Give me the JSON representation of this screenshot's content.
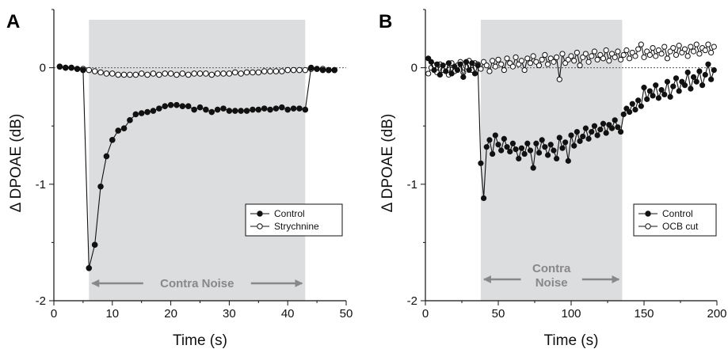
{
  "chart_data": [
    {
      "type": "line",
      "panel": "A",
      "xlabel": "Time (s)",
      "ylabel": "Δ DPOAE (dB)",
      "xlim": [
        0,
        50
      ],
      "ylim": [
        -2,
        0.5
      ],
      "xticks": [
        "0",
        "10",
        "20",
        "30",
        "40",
        "50"
      ],
      "yticks": [
        "0",
        "-1",
        "-2"
      ],
      "shaded_region": {
        "x": [
          6,
          43
        ],
        "label": "Contra Noise"
      },
      "reference_line_y": 0,
      "legend": [
        "Control",
        "Strychnine"
      ],
      "legend_position": "lower-right",
      "series": [
        {
          "name": "Control",
          "marker": "filled",
          "x": [
            1,
            2,
            3,
            4,
            5,
            6,
            7,
            8,
            9,
            10,
            11,
            12,
            13,
            14,
            15,
            16,
            17,
            18,
            19,
            20,
            21,
            22,
            23,
            24,
            25,
            26,
            27,
            28,
            29,
            30,
            31,
            32,
            33,
            34,
            35,
            36,
            37,
            38,
            39,
            40,
            41,
            42,
            43,
            44,
            45,
            46,
            47,
            48
          ],
          "y": [
            0.01,
            0,
            0,
            -0.01,
            -0.02,
            -1.72,
            -1.52,
            -1.02,
            -0.76,
            -0.62,
            -0.54,
            -0.52,
            -0.45,
            -0.4,
            -0.39,
            -0.38,
            -0.37,
            -0.35,
            -0.33,
            -0.32,
            -0.32,
            -0.33,
            -0.33,
            -0.36,
            -0.34,
            -0.36,
            -0.38,
            -0.36,
            -0.35,
            -0.37,
            -0.37,
            -0.37,
            -0.37,
            -0.36,
            -0.36,
            -0.35,
            -0.36,
            -0.35,
            -0.34,
            -0.36,
            -0.35,
            -0.35,
            -0.36,
            0,
            -0.01,
            -0.02,
            -0.02,
            -0.02
          ]
        },
        {
          "name": "Strychnine",
          "marker": "open",
          "x": [
            1,
            2,
            3,
            4,
            5,
            6,
            7,
            8,
            9,
            10,
            11,
            12,
            13,
            14,
            15,
            16,
            17,
            18,
            19,
            20,
            21,
            22,
            23,
            24,
            25,
            26,
            27,
            28,
            29,
            30,
            31,
            32,
            33,
            34,
            35,
            36,
            37,
            38,
            39,
            40,
            41,
            42,
            43,
            44,
            45,
            46,
            47,
            48
          ],
          "y": [
            0.01,
            0,
            0,
            -0.01,
            -0.01,
            -0.02,
            -0.03,
            -0.04,
            -0.05,
            -0.05,
            -0.06,
            -0.06,
            -0.06,
            -0.06,
            -0.05,
            -0.06,
            -0.05,
            -0.06,
            -0.05,
            -0.05,
            -0.06,
            -0.05,
            -0.06,
            -0.05,
            -0.05,
            -0.05,
            -0.06,
            -0.05,
            -0.05,
            -0.05,
            -0.04,
            -0.05,
            -0.04,
            -0.04,
            -0.04,
            -0.03,
            -0.03,
            -0.03,
            -0.03,
            -0.02,
            -0.02,
            -0.02,
            -0.02,
            -0.01,
            -0.01,
            -0.01,
            -0.02,
            -0.02
          ]
        }
      ]
    },
    {
      "type": "line",
      "panel": "B",
      "xlabel": "Time (s)",
      "ylabel": "Δ DPOAE (dB)",
      "xlim": [
        0,
        200
      ],
      "ylim": [
        -2,
        0.5
      ],
      "xticks": [
        "0",
        "50",
        "100",
        "150",
        "200"
      ],
      "yticks": [
        "0",
        "-1",
        "-2"
      ],
      "shaded_region": {
        "x": [
          38,
          135
        ],
        "label": "Contra\nNoise"
      },
      "reference_line_y": 0,
      "legend": [
        "Control",
        "OCB cut"
      ],
      "legend_position": "lower-right",
      "series": [
        {
          "name": "Control",
          "marker": "filled",
          "x": [
            2,
            4,
            6,
            8,
            10,
            12,
            14,
            16,
            18,
            20,
            22,
            24,
            26,
            28,
            30,
            32,
            34,
            36,
            38,
            40,
            42,
            44,
            46,
            48,
            50,
            52,
            54,
            56,
            58,
            60,
            62,
            64,
            66,
            68,
            70,
            72,
            74,
            76,
            78,
            80,
            82,
            84,
            86,
            88,
            90,
            92,
            94,
            96,
            98,
            100,
            102,
            104,
            106,
            108,
            110,
            112,
            114,
            116,
            118,
            120,
            122,
            124,
            126,
            128,
            130,
            132,
            134,
            136,
            138,
            140,
            142,
            144,
            146,
            148,
            150,
            152,
            154,
            156,
            158,
            160,
            162,
            164,
            166,
            168,
            170,
            172,
            174,
            176,
            178,
            180,
            182,
            184,
            186,
            188,
            190,
            192,
            194,
            196,
            198
          ],
          "y": [
            0.08,
            0.05,
            -0.02,
            0.03,
            -0.06,
            0.02,
            -0.03,
            0.04,
            -0.05,
            0.01,
            -0.02,
            0.03,
            -0.08,
            0.05,
            -0.02,
            0.04,
            -0.05,
            0.02,
            -0.82,
            -1.12,
            -0.68,
            -0.62,
            -0.74,
            -0.58,
            -0.66,
            -0.71,
            -0.61,
            -0.68,
            -0.72,
            -0.65,
            -0.7,
            -0.78,
            -0.69,
            -0.74,
            -0.65,
            -0.71,
            -0.86,
            -0.65,
            -0.73,
            -0.62,
            -0.68,
            -0.75,
            -0.66,
            -0.71,
            -0.78,
            -0.6,
            -0.69,
            -0.64,
            -0.8,
            -0.58,
            -0.67,
            -0.55,
            -0.63,
            -0.59,
            -0.52,
            -0.61,
            -0.55,
            -0.5,
            -0.58,
            -0.53,
            -0.48,
            -0.56,
            -0.49,
            -0.52,
            -0.45,
            -0.51,
            -0.55,
            -0.4,
            -0.35,
            -0.38,
            -0.31,
            -0.36,
            -0.28,
            -0.33,
            -0.17,
            -0.27,
            -0.2,
            -0.24,
            -0.15,
            -0.26,
            -0.19,
            -0.23,
            -0.12,
            -0.25,
            -0.16,
            -0.09,
            -0.2,
            -0.12,
            -0.15,
            -0.04,
            -0.18,
            -0.08,
            -0.12,
            -0.03,
            -0.15,
            -0.06,
            0.03,
            -0.1,
            -0.02
          ]
        },
        {
          "name": "OCB cut",
          "marker": "open",
          "x": [
            2,
            4,
            6,
            8,
            10,
            12,
            14,
            16,
            18,
            20,
            22,
            24,
            26,
            28,
            30,
            32,
            34,
            36,
            38,
            40,
            42,
            44,
            46,
            48,
            50,
            52,
            54,
            56,
            58,
            60,
            62,
            64,
            66,
            68,
            70,
            72,
            74,
            76,
            78,
            80,
            82,
            84,
            86,
            88,
            90,
            92,
            94,
            96,
            98,
            100,
            102,
            104,
            106,
            108,
            110,
            112,
            114,
            116,
            118,
            120,
            122,
            124,
            126,
            128,
            130,
            132,
            134,
            136,
            138,
            140,
            142,
            144,
            146,
            148,
            150,
            152,
            154,
            156,
            158,
            160,
            162,
            164,
            166,
            168,
            170,
            172,
            174,
            176,
            178,
            180,
            182,
            184,
            186,
            188,
            190,
            192,
            194,
            196,
            198
          ],
          "y": [
            -0.05,
            0,
            0.02,
            -0.04,
            0.03,
            -0.02,
            0.01,
            -0.06,
            0.04,
            -0.03,
            0.02,
            0.05,
            -0.04,
            0.01,
            0.06,
            -0.02,
            0.04,
            0.03,
            -0.01,
            0.05,
            0.02,
            -0.03,
            0.06,
            0.01,
            0.07,
            0.03,
            -0.02,
            0.08,
            0.04,
            0.01,
            0.09,
            0.03,
            0.06,
            -0.02,
            0.08,
            0.04,
            0.1,
            0.05,
            0.02,
            0.07,
            0.11,
            0.03,
            0.08,
            0.05,
            0.09,
            -0.1,
            0.12,
            0.04,
            0.07,
            0.1,
            0.06,
            0.13,
            0.02,
            0.09,
            0.12,
            0.05,
            0.1,
            0.14,
            0.07,
            0.11,
            0.08,
            0.15,
            0.06,
            0.12,
            0.09,
            0.14,
            0.07,
            0.11,
            0.15,
            0.08,
            0.13,
            0.1,
            0.16,
            0.2,
            0.09,
            0.14,
            0.11,
            0.17,
            0.1,
            0.15,
            0.12,
            0.18,
            0.08,
            0.14,
            0.17,
            0.11,
            0.19,
            0.13,
            0.16,
            0.1,
            0.18,
            0.14,
            0.2,
            0.12,
            0.17,
            0.15,
            0.2,
            0.13,
            0.18
          ]
        }
      ]
    }
  ]
}
